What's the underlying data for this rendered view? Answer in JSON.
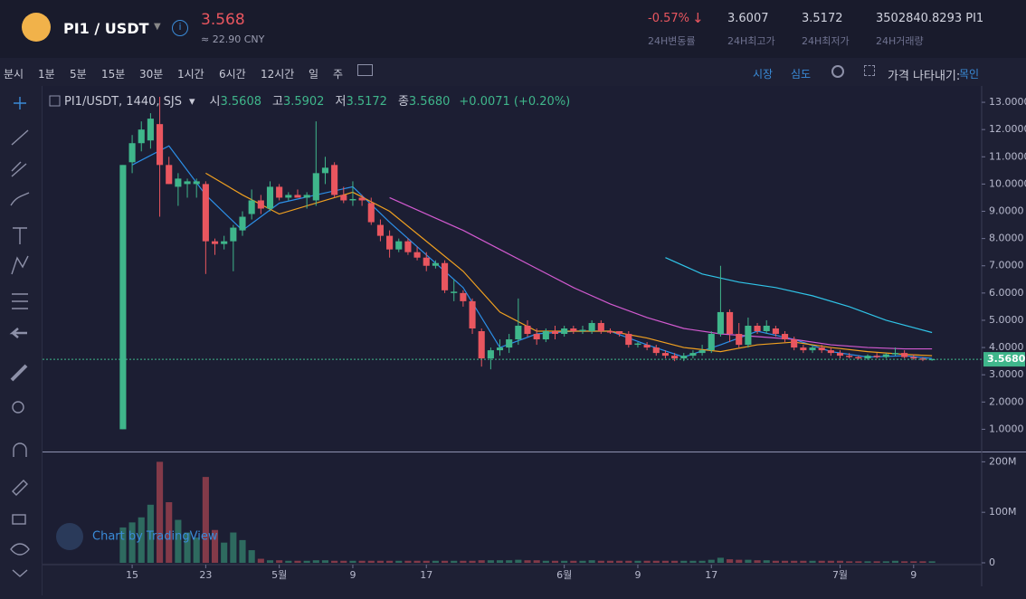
{
  "header": {
    "pair": "PI1 / USDT",
    "price": "3.568",
    "cny": "≈ 22.90 CNY",
    "stats": [
      {
        "value": "-0.57%",
        "label": "24H변동률"
      },
      {
        "value": "3.6007",
        "label": "24H최고가"
      },
      {
        "value": "3.5172",
        "label": "24H최저가"
      },
      {
        "value": "3502840.8293 PI1",
        "label": "24H거래량"
      }
    ]
  },
  "toolbar": {
    "intervals": [
      "분시",
      "1분",
      "5분",
      "15분",
      "30분",
      "1시간",
      "6시간",
      "12시간",
      "일",
      "주"
    ],
    "right": [
      "시장",
      "심도",
      "가격 나타내기:",
      "목인"
    ]
  },
  "watermark": "Chart by TradingView",
  "chart_data": {
    "type": "candlestick",
    "legend": {
      "symbol": "PI1/USDT, 1440, SJS",
      "items": [
        {
          "label": "시",
          "value": "3.5608"
        },
        {
          "label": "고",
          "value": "3.5902"
        },
        {
          "label": "저",
          "value": "3.5172"
        },
        {
          "label": "종",
          "value": "3.5680"
        }
      ],
      "change": "+0.0071 (+0.20%)"
    },
    "up_color": "#3fb68b",
    "down_color": "#e9565f",
    "xlim": [
      -8.75,
      93.4
    ],
    "xticks": [
      {
        "value": 1,
        "label": "15"
      },
      {
        "value": 9,
        "label": "23"
      },
      {
        "value": 17,
        "label": "5월"
      },
      {
        "value": 25,
        "label": "9"
      },
      {
        "value": 33,
        "label": "17"
      },
      {
        "value": 48,
        "label": "6월"
      },
      {
        "value": 56,
        "label": "9"
      },
      {
        "value": 64,
        "label": "17"
      },
      {
        "value": 78,
        "label": "7월"
      },
      {
        "value": 86,
        "label": "9"
      }
    ],
    "ylim": [
      0.25,
      13.6
    ],
    "yticks": [
      {
        "value": 1,
        "label": "1.0000"
      },
      {
        "value": 2,
        "label": "2.0000"
      },
      {
        "value": 3,
        "label": "3.0000"
      },
      {
        "value": 4,
        "label": "4.0000"
      },
      {
        "value": 5,
        "label": "5.0000"
      },
      {
        "value": 6,
        "label": "6.0000"
      },
      {
        "value": 7,
        "label": "7.0000"
      },
      {
        "value": 8,
        "label": "8.0000"
      },
      {
        "value": 9,
        "label": "9.0000"
      },
      {
        "value": 10,
        "label": "10.0000"
      },
      {
        "value": 11,
        "label": "11.0000"
      },
      {
        "value": 12,
        "label": "12.0000"
      },
      {
        "value": 13,
        "label": "13.0000"
      }
    ],
    "last_price": {
      "value": 3.568,
      "label": "3.5680"
    },
    "candles": [
      [
        1.0,
        10.7,
        1.0,
        10.7
      ],
      [
        10.8,
        11.8,
        10.4,
        11.5
      ],
      [
        11.5,
        12.3,
        11.2,
        12.0
      ],
      [
        11.6,
        12.6,
        11.3,
        12.4
      ],
      [
        12.2,
        13.2,
        8.8,
        10.7
      ],
      [
        10.7,
        11.0,
        10.0,
        10.0
      ],
      [
        9.9,
        10.4,
        9.2,
        10.2
      ],
      [
        10.0,
        10.2,
        9.5,
        10.1
      ],
      [
        10.0,
        10.2,
        9.5,
        10.1
      ],
      [
        10.0,
        10.1,
        6.7,
        7.9
      ],
      [
        7.9,
        8.0,
        7.4,
        7.8
      ],
      [
        7.8,
        8.1,
        7.6,
        7.9
      ],
      [
        7.9,
        8.5,
        6.8,
        8.4
      ],
      [
        8.3,
        9.0,
        8.1,
        8.8
      ],
      [
        8.9,
        9.8,
        8.7,
        9.4
      ],
      [
        9.4,
        9.6,
        8.9,
        9.1
      ],
      [
        9.1,
        10.1,
        9.0,
        9.9
      ],
      [
        9.9,
        10.0,
        9.4,
        9.5
      ],
      [
        9.5,
        9.7,
        9.4,
        9.6
      ],
      [
        9.6,
        9.8,
        9.5,
        9.5
      ],
      [
        9.5,
        9.7,
        9.1,
        9.6
      ],
      [
        9.4,
        12.3,
        9.2,
        10.4
      ],
      [
        10.4,
        11.0,
        10.0,
        10.6
      ],
      [
        10.7,
        10.8,
        9.5,
        9.6
      ],
      [
        9.6,
        9.9,
        9.3,
        9.4
      ],
      [
        9.4,
        10.1,
        9.2,
        9.45
      ],
      [
        9.5,
        9.6,
        9.2,
        9.4
      ],
      [
        9.3,
        9.5,
        8.5,
        8.6
      ],
      [
        8.5,
        8.7,
        7.9,
        8.1
      ],
      [
        8.1,
        8.3,
        7.3,
        7.6
      ],
      [
        7.6,
        8.0,
        7.5,
        7.9
      ],
      [
        7.9,
        8.0,
        7.4,
        7.5
      ],
      [
        7.5,
        7.7,
        7.2,
        7.3
      ],
      [
        7.3,
        7.5,
        6.8,
        7.0
      ],
      [
        7.0,
        7.2,
        6.9,
        7.1
      ],
      [
        7.1,
        7.2,
        6.0,
        6.1
      ],
      [
        6.0,
        6.5,
        5.7,
        6.05
      ],
      [
        6.0,
        6.1,
        5.5,
        5.7
      ],
      [
        5.7,
        5.8,
        4.5,
        4.7
      ],
      [
        4.6,
        4.7,
        3.3,
        3.6
      ],
      [
        3.6,
        4.0,
        3.2,
        3.9
      ],
      [
        3.9,
        4.3,
        3.7,
        4.0
      ],
      [
        4.0,
        4.5,
        3.8,
        4.3
      ],
      [
        4.3,
        5.8,
        4.1,
        4.8
      ],
      [
        4.8,
        5.0,
        4.4,
        4.5
      ],
      [
        4.5,
        4.7,
        4.1,
        4.3
      ],
      [
        4.3,
        4.7,
        4.2,
        4.6
      ],
      [
        4.6,
        4.8,
        4.3,
        4.5
      ],
      [
        4.5,
        4.8,
        4.4,
        4.7
      ],
      [
        4.7,
        4.8,
        4.5,
        4.6
      ],
      [
        4.6,
        4.8,
        4.5,
        4.65
      ],
      [
        4.6,
        5.0,
        4.5,
        4.9
      ],
      [
        4.9,
        5.0,
        4.5,
        4.6
      ],
      [
        4.6,
        4.7,
        4.5,
        4.55
      ],
      [
        4.6,
        4.6,
        4.4,
        4.5
      ],
      [
        4.5,
        4.6,
        4.0,
        4.1
      ],
      [
        4.1,
        4.2,
        4.0,
        4.15
      ],
      [
        4.1,
        4.2,
        3.9,
        4.0
      ],
      [
        4.0,
        4.1,
        3.7,
        3.8
      ],
      [
        3.8,
        3.9,
        3.6,
        3.7
      ],
      [
        3.7,
        3.8,
        3.5,
        3.6
      ],
      [
        3.6,
        3.8,
        3.5,
        3.7
      ],
      [
        3.7,
        3.9,
        3.6,
        3.8
      ],
      [
        3.8,
        4.1,
        3.7,
        3.9
      ],
      [
        3.9,
        4.6,
        3.8,
        4.5
      ],
      [
        4.5,
        7.0,
        4.4,
        5.3
      ],
      [
        5.3,
        5.4,
        4.2,
        4.5
      ],
      [
        4.5,
        4.9,
        4.0,
        4.1
      ],
      [
        4.1,
        5.1,
        4.0,
        4.8
      ],
      [
        4.8,
        4.9,
        4.5,
        4.6
      ],
      [
        4.6,
        5.0,
        4.5,
        4.8
      ],
      [
        4.7,
        4.8,
        4.4,
        4.5
      ],
      [
        4.5,
        4.6,
        4.2,
        4.3
      ],
      [
        4.3,
        4.4,
        3.9,
        4.0
      ],
      [
        4.0,
        4.1,
        3.8,
        3.9
      ],
      [
        3.9,
        4.1,
        3.8,
        4.0
      ],
      [
        4.0,
        4.1,
        3.8,
        3.9
      ],
      [
        3.9,
        4.0,
        3.7,
        3.8
      ],
      [
        3.8,
        3.9,
        3.6,
        3.7
      ],
      [
        3.7,
        3.8,
        3.6,
        3.65
      ],
      [
        3.65,
        3.7,
        3.55,
        3.6
      ],
      [
        3.6,
        3.75,
        3.55,
        3.7
      ],
      [
        3.7,
        3.8,
        3.6,
        3.65
      ],
      [
        3.65,
        3.8,
        3.6,
        3.75
      ],
      [
        3.75,
        4.0,
        3.7,
        3.8
      ],
      [
        3.8,
        3.9,
        3.6,
        3.65
      ],
      [
        3.65,
        3.75,
        3.55,
        3.6
      ],
      [
        3.6,
        3.65,
        3.5,
        3.55
      ],
      [
        3.5608,
        3.5902,
        3.5172,
        3.568
      ]
    ],
    "volume_lim": [
      0,
      215
    ],
    "volume_ticks": [
      0,
      {
        "value": 100,
        "label": "100M"
      },
      {
        "value": 200,
        "label": "200M"
      }
    ],
    "volume": [
      70,
      80,
      90,
      115,
      200,
      120,
      85,
      60,
      50,
      170,
      65,
      40,
      60,
      45,
      25,
      8,
      5,
      5,
      4,
      4,
      4,
      5,
      5,
      4,
      4,
      4,
      4,
      4,
      4,
      4,
      4,
      4,
      4,
      4,
      4,
      4,
      4,
      4,
      4,
      5,
      5,
      5,
      5,
      6,
      5,
      5,
      4,
      4,
      4,
      4,
      4,
      5,
      4,
      4,
      4,
      4,
      4,
      4,
      4,
      4,
      4,
      4,
      4,
      4,
      6,
      10,
      7,
      6,
      6,
      5,
      5,
      4,
      4,
      4,
      4,
      4,
      4,
      4,
      4,
      3,
      3,
      3,
      3,
      3,
      4,
      3,
      3,
      3,
      3
    ],
    "ma": [
      {
        "color": "#2c8fe8",
        "x": [
          1,
          5,
          9,
          13,
          17,
          21,
          25,
          29,
          33,
          37,
          41,
          45,
          49,
          53,
          57,
          61,
          65,
          69,
          73,
          77,
          81,
          85,
          88
        ],
        "values": [
          10.7,
          11.4,
          9.6,
          8.3,
          9.3,
          9.6,
          9.9,
          8.6,
          7.4,
          6.2,
          4.0,
          4.5,
          4.6,
          4.6,
          4.1,
          3.65,
          4.1,
          4.6,
          4.3,
          3.85,
          3.65,
          3.7,
          3.6
        ]
      },
      {
        "color": "#f0a020",
        "x": [
          9,
          13,
          17,
          21,
          25,
          29,
          33,
          37,
          41,
          45,
          49,
          53,
          57,
          61,
          65,
          69,
          73,
          77,
          81,
          85,
          88
        ],
        "values": [
          10.4,
          9.6,
          8.9,
          9.3,
          9.7,
          9.0,
          7.9,
          6.8,
          5.3,
          4.6,
          4.6,
          4.6,
          4.35,
          4.0,
          3.85,
          4.1,
          4.2,
          4.0,
          3.85,
          3.75,
          3.7
        ]
      },
      {
        "color": "#d25ad0",
        "x": [
          29,
          33,
          37,
          41,
          45,
          49,
          53,
          57,
          61,
          65,
          69,
          73,
          77,
          81,
          85,
          88
        ],
        "values": [
          9.5,
          8.9,
          8.3,
          7.6,
          6.9,
          6.2,
          5.6,
          5.1,
          4.7,
          4.5,
          4.4,
          4.3,
          4.1,
          4.0,
          3.95,
          3.95
        ]
      },
      {
        "color": "#30c4e8",
        "x": [
          59,
          63,
          67,
          71,
          75,
          79,
          83,
          88
        ],
        "values": [
          7.3,
          6.7,
          6.4,
          6.2,
          5.9,
          5.5,
          5.0,
          4.55
        ]
      }
    ]
  }
}
